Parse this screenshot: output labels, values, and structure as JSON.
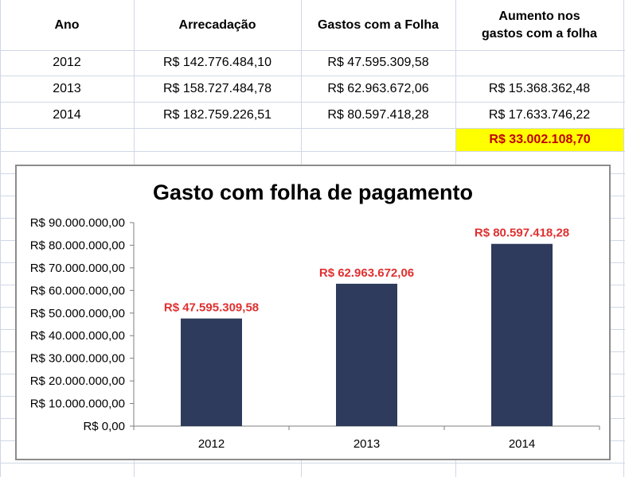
{
  "table": {
    "headers": [
      "Ano",
      "Arrecadação",
      "Gastos com a Folha",
      "Aumento nos",
      "gastos com a folha"
    ],
    "rows": [
      [
        "2012",
        "R$ 142.776.484,10",
        "R$ 47.595.309,58",
        ""
      ],
      [
        "2013",
        "R$ 158.727.484,78",
        "R$ 62.963.672,06",
        "R$ 15.368.362,48"
      ],
      [
        "2014",
        "R$ 182.759.226,51",
        "R$ 80.597.418,28",
        "R$ 17.633.746,22"
      ]
    ],
    "total": "R$ 33.002.108,70"
  },
  "colors": {
    "bar": "#2e3b5c",
    "data_label": "#e03030",
    "total_highlight": "#ffff00",
    "total_text": "#c00000",
    "gridline": "#d0d7e5"
  },
  "chart_data": {
    "type": "bar",
    "title": "Gasto com folha de pagamento",
    "categories": [
      "2012",
      "2013",
      "2014"
    ],
    "values": [
      47595309.58,
      62963672.06,
      80597418.28
    ],
    "data_labels": [
      "R$ 47.595.309,58",
      "R$ 62.963.672,06",
      "R$ 80.597.418,28"
    ],
    "ylim": [
      0,
      90000000
    ],
    "yticks": [
      0,
      10000000,
      20000000,
      30000000,
      40000000,
      50000000,
      60000000,
      70000000,
      80000000,
      90000000
    ],
    "ytick_labels": [
      "R$ 0,00",
      "R$ 10.000.000,00",
      "R$ 20.000.000,00",
      "R$ 30.000.000,00",
      "R$ 40.000.000,00",
      "R$ 50.000.000,00",
      "R$ 60.000.000,00",
      "R$ 70.000.000,00",
      "R$ 80.000.000,00",
      "R$ 90.000.000,00"
    ],
    "xlabel": "",
    "ylabel": "",
    "grid": false,
    "legend": "none"
  }
}
